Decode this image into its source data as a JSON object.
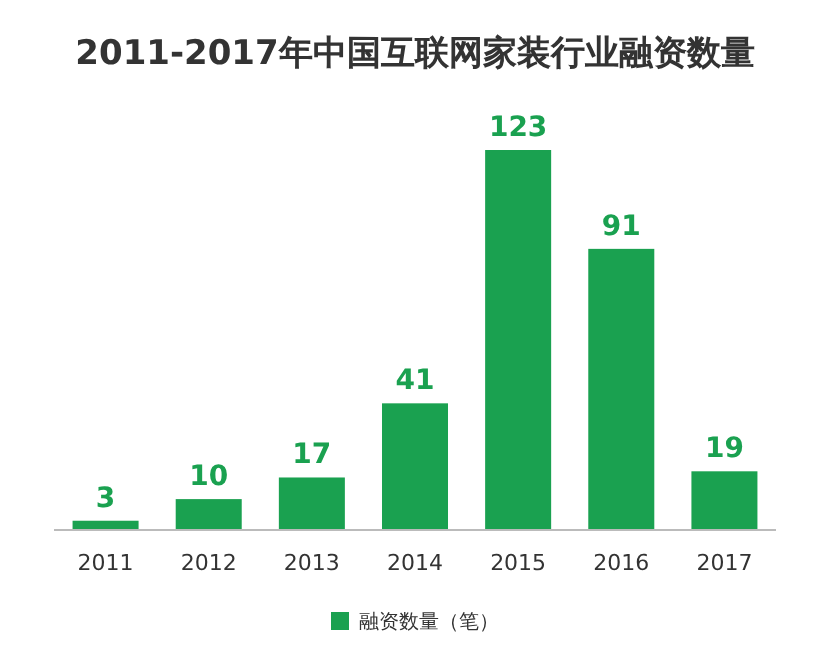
{
  "chart_data": {
    "type": "bar",
    "title": "2011-2017年中国互联网家装行业融资数量",
    "categories": [
      "2011",
      "2012",
      "2013",
      "2014",
      "2015",
      "2016",
      "2017"
    ],
    "series": [
      {
        "name": "融资数量（笔）",
        "color": "#1aa150",
        "values": [
          3,
          10,
          17,
          41,
          123,
          91,
          19
        ]
      }
    ],
    "data_labels": true,
    "legend": "bottom"
  }
}
